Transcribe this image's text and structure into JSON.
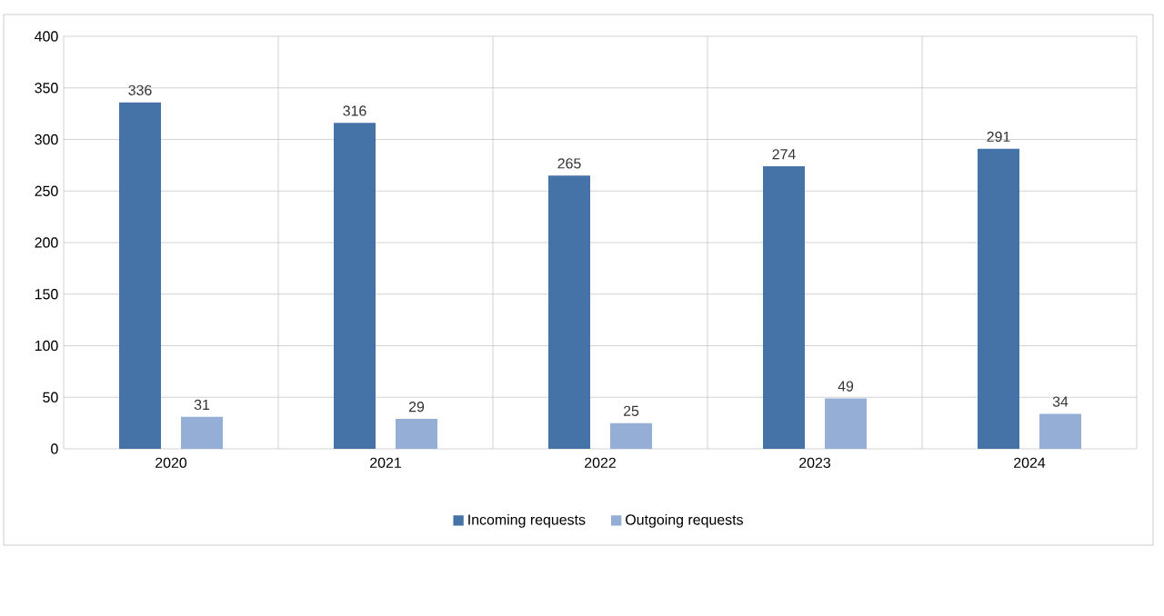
{
  "chart_data": {
    "type": "bar",
    "categories": [
      "2020",
      "2021",
      "2022",
      "2023",
      "2024"
    ],
    "series": [
      {
        "name": "Incoming requests",
        "color": "#4572a7",
        "values": [
          336,
          316,
          265,
          274,
          291
        ]
      },
      {
        "name": "Outgoing requests",
        "color": "#95aed6",
        "values": [
          31,
          29,
          25,
          49,
          34
        ]
      }
    ],
    "ylim": [
      0,
      400
    ],
    "yticks": [
      0,
      50,
      100,
      150,
      200,
      250,
      300,
      350,
      400
    ],
    "grid": true,
    "legend": "bottom",
    "data_labels": true
  }
}
